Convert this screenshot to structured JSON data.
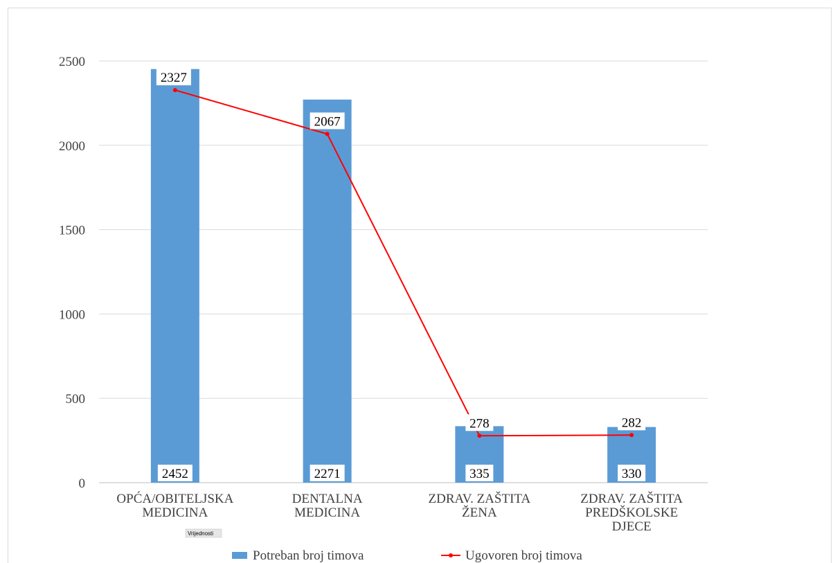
{
  "chart_data": {
    "type": "bar",
    "categories": [
      [
        "OPĆA/OBITELJSKA",
        "MEDICINA"
      ],
      [
        "DENTALNA",
        "MEDICINA"
      ],
      [
        "ZDRAV. ZAŠTITA",
        "ŽENA"
      ],
      [
        "ZDRAV. ZAŠTITA",
        "PREDŠKOLSKE",
        "DJECE"
      ]
    ],
    "series": [
      {
        "name": "Potreban broj timova",
        "kind": "bar",
        "color": "#5b9bd5",
        "values": [
          2452,
          2271,
          335,
          330
        ]
      },
      {
        "name": "Ugovoren broj timova",
        "kind": "line",
        "color": "#ff0000",
        "values": [
          2327,
          2067,
          278,
          282
        ]
      }
    ],
    "ylim": [
      0,
      2500
    ],
    "yticks": [
      0,
      500,
      1000,
      1500,
      2000,
      2500
    ],
    "grid": true,
    "legend_position": "bottom",
    "field_button": "Vrijednosti"
  }
}
